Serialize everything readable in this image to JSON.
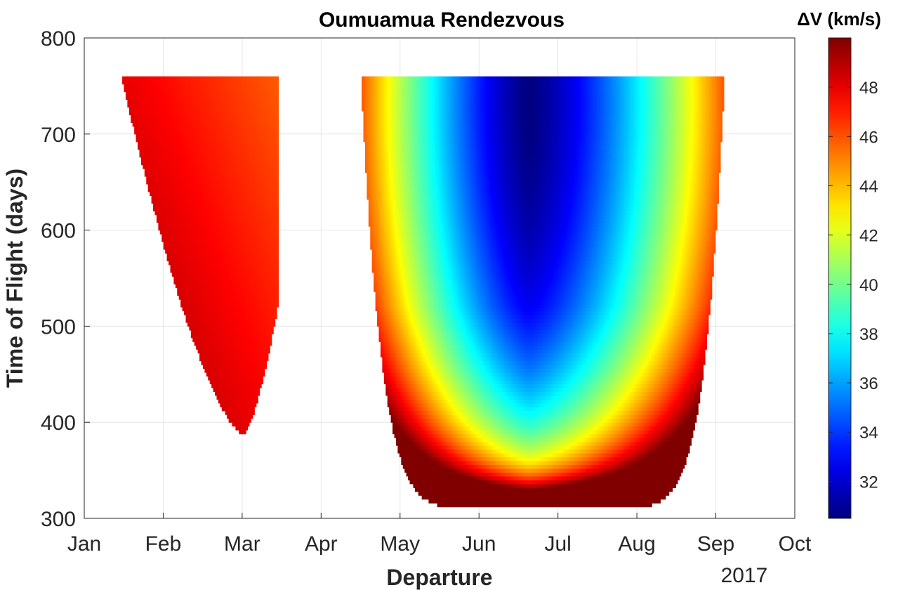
{
  "chart_data": {
    "type": "heatmap",
    "title": "Oumuamua Rendezvous",
    "xlabel": "Departure",
    "ylabel": "Time of Flight (days)",
    "x_year_label": "2017",
    "x_ticks": [
      "Jan",
      "Feb",
      "Mar",
      "Apr",
      "May",
      "Jun",
      "Jul",
      "Aug",
      "Sep",
      "Oct"
    ],
    "x_range_months": [
      0,
      9
    ],
    "ylim": [
      300,
      800
    ],
    "y_ticks": [
      300,
      400,
      500,
      600,
      700,
      800
    ],
    "grid": true,
    "colormap": "jet",
    "colorbar": {
      "label": "ΔV (km/s)",
      "range": [
        30.5,
        50
      ],
      "ticks": [
        32,
        34,
        36,
        38,
        40,
        42,
        44,
        46,
        48
      ]
    },
    "regions": [
      {
        "name": "",
        "departure_start": "Jan 15",
        "departure_end": "Mar 15",
        "tof_max": 760,
        "min_tof": 388,
        "min_tof_departure": "Mar 1",
        "dv_min": 46,
        "dv_max": 50
      },
      {
        "name": "",
        "departure_start": "Apr 16",
        "departure_end": "Sep 4",
        "tof_max": 760,
        "min_tof": 310,
        "min_tof_departure": "Jun 27",
        "dv_min": 30.5,
        "dv_max": 50,
        "dv_min_location": {
          "departure": "Jun 20",
          "tof": 730
        }
      }
    ]
  }
}
